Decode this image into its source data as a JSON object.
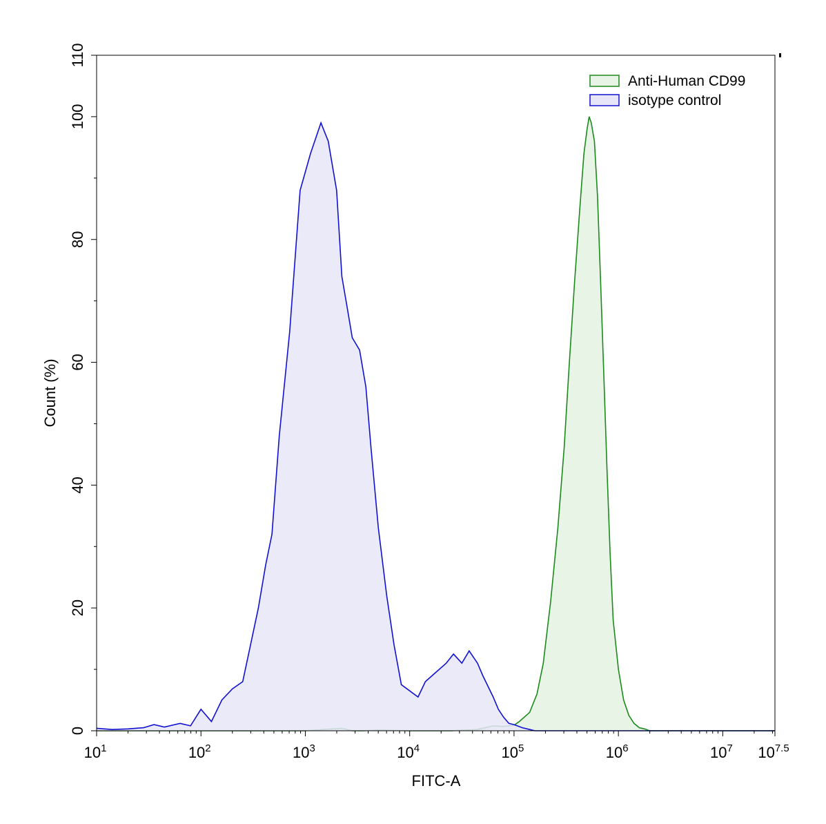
{
  "chart_data": {
    "type": "area",
    "title": "",
    "xlabel": "FITC-A",
    "ylabel": "Count  (%)",
    "x_scale": "log10",
    "xlim_exponent": [
      1,
      7.5
    ],
    "ylim": [
      0,
      110
    ],
    "y_ticks": [
      "0",
      "20",
      "40",
      "60",
      "80",
      "100",
      "110"
    ],
    "x_ticks": [
      {
        "base": "10",
        "exp": "1"
      },
      {
        "base": "10",
        "exp": "2"
      },
      {
        "base": "10",
        "exp": "3"
      },
      {
        "base": "10",
        "exp": "4"
      },
      {
        "base": "10",
        "exp": "5"
      },
      {
        "base": "10",
        "exp": "6"
      },
      {
        "base": "10",
        "exp": "7"
      },
      {
        "base": "10",
        "exp": "7.5"
      }
    ],
    "legend": {
      "position": "top-right",
      "entries": [
        "Anti-Human CD99",
        "isotype control"
      ]
    },
    "grid": false,
    "series": [
      {
        "name": "Anti-Human CD99",
        "stroke": "#1a8a1a",
        "fill": "#e8f4e6",
        "x_log": [
          1,
          1.5,
          2.0,
          2.5,
          3.0,
          3.35,
          3.45,
          3.55,
          3.7,
          4.0,
          4.4,
          4.65,
          4.8,
          4.9,
          5.0,
          5.05,
          5.15,
          5.22,
          5.28,
          5.35,
          5.42,
          5.48,
          5.53,
          5.58,
          5.63,
          5.67,
          5.7,
          5.72,
          5.74,
          5.77,
          5.8,
          5.83,
          5.86,
          5.89,
          5.92,
          5.95,
          6.0,
          6.05,
          6.1,
          6.15,
          6.2,
          6.25,
          6.3,
          6.35,
          6.45,
          6.6,
          7.0,
          7.5
        ],
        "y": [
          0,
          0,
          0,
          0,
          0,
          0.4,
          0,
          0,
          0.1,
          0,
          0,
          0.2,
          0.8,
          0.7,
          0.9,
          1.5,
          3,
          6,
          11,
          21,
          33,
          46,
          60,
          73,
          85,
          94,
          98,
          100,
          99,
          96,
          87,
          73,
          58,
          43,
          29,
          18,
          10,
          5,
          2.5,
          1.2,
          0.5,
          0.3,
          0,
          0,
          0,
          0,
          0,
          0
        ]
      },
      {
        "name": "isotype control",
        "stroke": "#1010d0",
        "fill": "#e6e6f8",
        "x_log": [
          1,
          1.15,
          1.3,
          1.45,
          1.55,
          1.65,
          1.8,
          1.9,
          2.0,
          2.1,
          2.2,
          2.3,
          2.4,
          2.45,
          2.55,
          2.62,
          2.68,
          2.75,
          2.85,
          2.95,
          3.05,
          3.15,
          3.22,
          3.3,
          3.35,
          3.4,
          3.45,
          3.52,
          3.58,
          3.63,
          3.7,
          3.78,
          3.85,
          3.92,
          4.0,
          4.08,
          4.15,
          4.25,
          4.35,
          4.42,
          4.5,
          4.57,
          4.65,
          4.7,
          4.8,
          4.85,
          4.9,
          4.95,
          5.0,
          5.08,
          5.15,
          5.2,
          5.25,
          5.3,
          5.35,
          5.42,
          5.5,
          5.6,
          5.7,
          5.75,
          5.8,
          5.9,
          6.2,
          7.5
        ],
        "y": [
          0.4,
          0.2,
          0.3,
          0.5,
          1.0,
          0.6,
          1.2,
          0.8,
          3.5,
          1.5,
          5,
          6.8,
          8,
          12,
          20,
          27,
          32,
          48,
          65,
          88,
          94,
          99,
          96,
          88,
          74,
          69,
          64,
          62,
          56,
          46,
          33,
          22,
          14,
          7.5,
          6.5,
          5.5,
          8,
          9.5,
          11,
          12.5,
          11,
          13,
          11,
          9,
          5.5,
          3.5,
          2.2,
          1.2,
          1.0,
          0.5,
          0.2,
          0,
          0,
          0,
          0,
          0,
          0,
          0,
          0,
          0,
          0,
          0,
          0,
          0
        ]
      }
    ]
  }
}
